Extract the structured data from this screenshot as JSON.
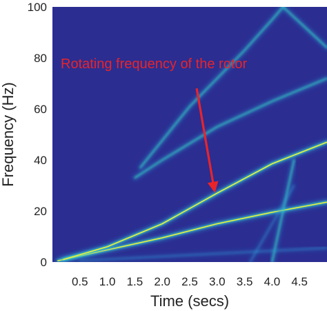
{
  "chart_data": {
    "type": "heatmap",
    "title": "",
    "xlabel": "Time (secs)",
    "ylabel": "Frequency (Hz)",
    "xlim": [
      0,
      5
    ],
    "ylim": [
      0,
      100
    ],
    "x_ticks": [
      "0.5",
      "1.0",
      "1.5",
      "2.0",
      "2.5",
      "3.0",
      "3.5",
      "4.0",
      "4.5"
    ],
    "x_tick_values": [
      0.5,
      1.0,
      1.5,
      2.0,
      2.5,
      3.0,
      3.5,
      4.0,
      4.5
    ],
    "y_ticks": [
      "0",
      "20",
      "40",
      "60",
      "80",
      "100"
    ],
    "y_tick_values": [
      0,
      20,
      40,
      60,
      80,
      100
    ],
    "grid": false,
    "colormap": [
      "#2b2d91",
      "#2f9bd6",
      "#36e0c4",
      "#f0f03a"
    ],
    "background_color": "#2b2d91",
    "ridges": [
      {
        "points": [
          [
            0.1,
            0.5
          ],
          [
            2.0,
            9.5
          ],
          [
            3.0,
            15.0
          ],
          [
            4.0,
            19.5
          ],
          [
            5.0,
            23.5
          ]
        ],
        "intensity": "high"
      },
      {
        "points": [
          [
            0.2,
            1.0
          ],
          [
            1.0,
            6.0
          ],
          [
            2.0,
            15.0
          ],
          [
            3.0,
            27.0
          ],
          [
            4.0,
            38.5
          ],
          [
            5.0,
            47.0
          ]
        ],
        "intensity": "high"
      },
      {
        "points": [
          [
            1.5,
            33.0
          ],
          [
            2.0,
            40.0
          ],
          [
            3.0,
            53.0
          ],
          [
            4.0,
            63.0
          ],
          [
            5.0,
            72.0
          ]
        ],
        "intensity": "medium"
      },
      {
        "points": [
          [
            1.6,
            37.0
          ],
          [
            2.5,
            61.0
          ],
          [
            3.0,
            72.0
          ],
          [
            3.5,
            83.0
          ],
          [
            4.0,
            95.0
          ],
          [
            4.2,
            100.0
          ]
        ],
        "intensity": "medium"
      },
      {
        "points": [
          [
            4.2,
            100.0
          ],
          [
            4.6,
            92.0
          ],
          [
            5.0,
            84.0
          ]
        ],
        "intensity": "medium"
      },
      {
        "points": [
          [
            4.0,
            0.0
          ],
          [
            4.2,
            20.0
          ],
          [
            4.4,
            40.0
          ]
        ],
        "intensity": "medium"
      },
      {
        "points": [
          [
            3.6,
            0.0
          ],
          [
            4.0,
            15.0
          ],
          [
            4.4,
            30.0
          ]
        ],
        "intensity": "low"
      },
      {
        "points": [
          [
            0.5,
            0.5
          ],
          [
            5.0,
            5.5
          ]
        ],
        "intensity": "low"
      },
      {
        "points": [
          [
            0.0,
            0.3
          ],
          [
            1.1,
            0.3
          ]
        ],
        "intensity": "medium"
      }
    ],
    "annotations": [
      {
        "text": "Rotating frequency of the rotor",
        "color": "#e8242b",
        "arrow_from": [
          2.3,
          74.0
        ],
        "arrow_to": [
          2.95,
          28.0
        ]
      }
    ]
  }
}
